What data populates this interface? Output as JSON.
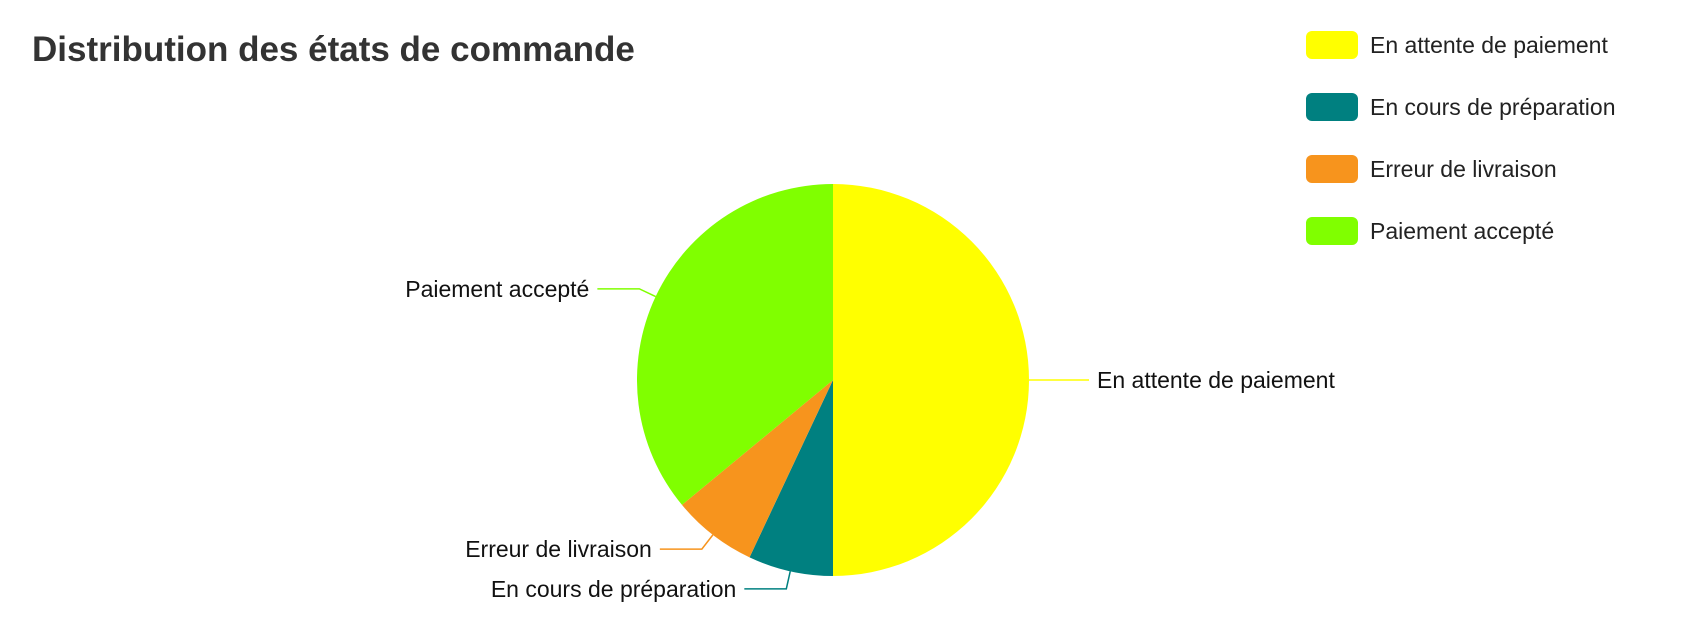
{
  "chart_data": {
    "type": "pie",
    "title": "Distribution des états de commande",
    "categories": [
      "En attente de paiement",
      "En cours de préparation",
      "Erreur de livraison",
      "Paiement accepté"
    ],
    "values": [
      50,
      7,
      7,
      36
    ],
    "colors": [
      "#ffff00",
      "#008080",
      "#f7941d",
      "#80ff00"
    ],
    "legend_position": "top-right"
  }
}
